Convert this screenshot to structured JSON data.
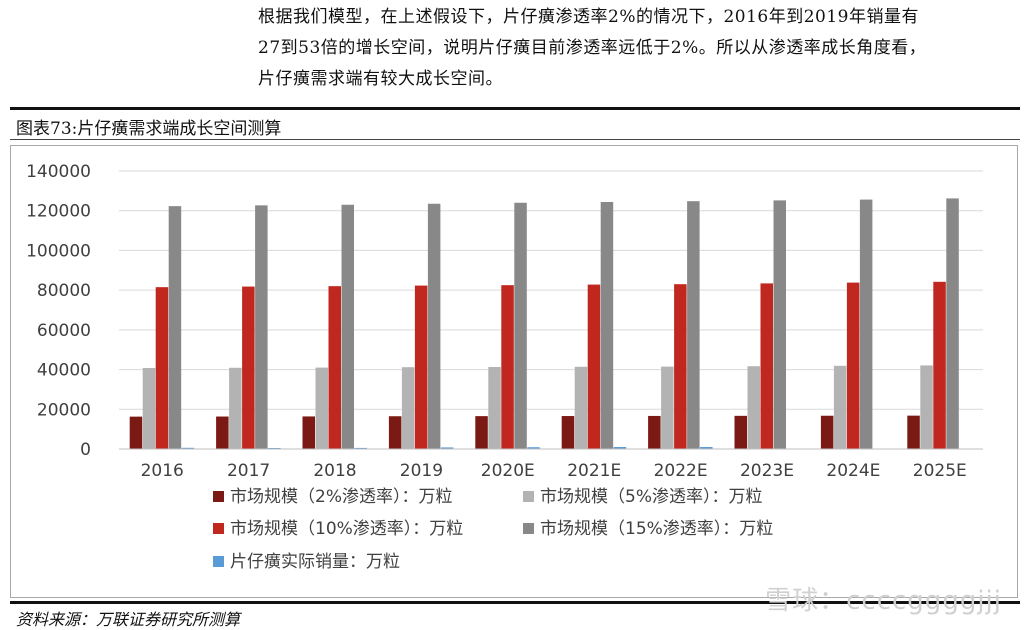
{
  "paragraph": {
    "lines": [
      "根据我们模型，在上述假设下，片仔癀渗透率2%的情况下，2016年到2019年销量有",
      "27到53倍的增长空间，说明片仔癀目前渗透率远低于2%。所以从渗透率成长角度看，",
      "片仔癀需求端有较大成长空间。"
    ]
  },
  "figure": {
    "title": "图表73:片仔癀需求端成长空间测算"
  },
  "source": "资料来源：万联证券研究所测算",
  "watermark": "雪球：ccccggggjjj",
  "chart_data": {
    "type": "bar",
    "categories": [
      "2016",
      "2017",
      "2018",
      "2019",
      "2020E",
      "2021E",
      "2022E",
      "2023E",
      "2024E",
      "2025E"
    ],
    "ylim": [
      0,
      140000
    ],
    "yticks": [
      0,
      20000,
      40000,
      60000,
      80000,
      100000,
      120000,
      140000
    ],
    "grid": true,
    "legend_position": "bottom",
    "series": [
      {
        "name": "市场规模（2%渗透率）：万粒",
        "color": "#7b1a14",
        "values": [
          16300,
          16350,
          16400,
          16500,
          16550,
          16600,
          16650,
          16700,
          16750,
          16800
        ]
      },
      {
        "name": "市场规模（5%渗透率）：万粒",
        "color": "#b3b3b3",
        "values": [
          40800,
          40900,
          41000,
          41200,
          41300,
          41400,
          41500,
          41700,
          41900,
          42100
        ]
      },
      {
        "name": "市场规模（10%渗透率）：万粒",
        "color": "#c0281f",
        "values": [
          81500,
          81800,
          82000,
          82300,
          82500,
          82800,
          83000,
          83400,
          83800,
          84200
        ]
      },
      {
        "name": "市场规模（15%渗透率）：万粒",
        "color": "#888888",
        "values": [
          122300,
          122700,
          123000,
          123500,
          124000,
          124400,
          124800,
          125200,
          125600,
          126200
        ]
      },
      {
        "name": "片仔癀实际销量：万粒",
        "color": "#5b9bd5",
        "values": [
          600,
          500,
          550,
          800,
          900,
          1000,
          1000,
          0,
          0,
          0
        ]
      }
    ]
  }
}
